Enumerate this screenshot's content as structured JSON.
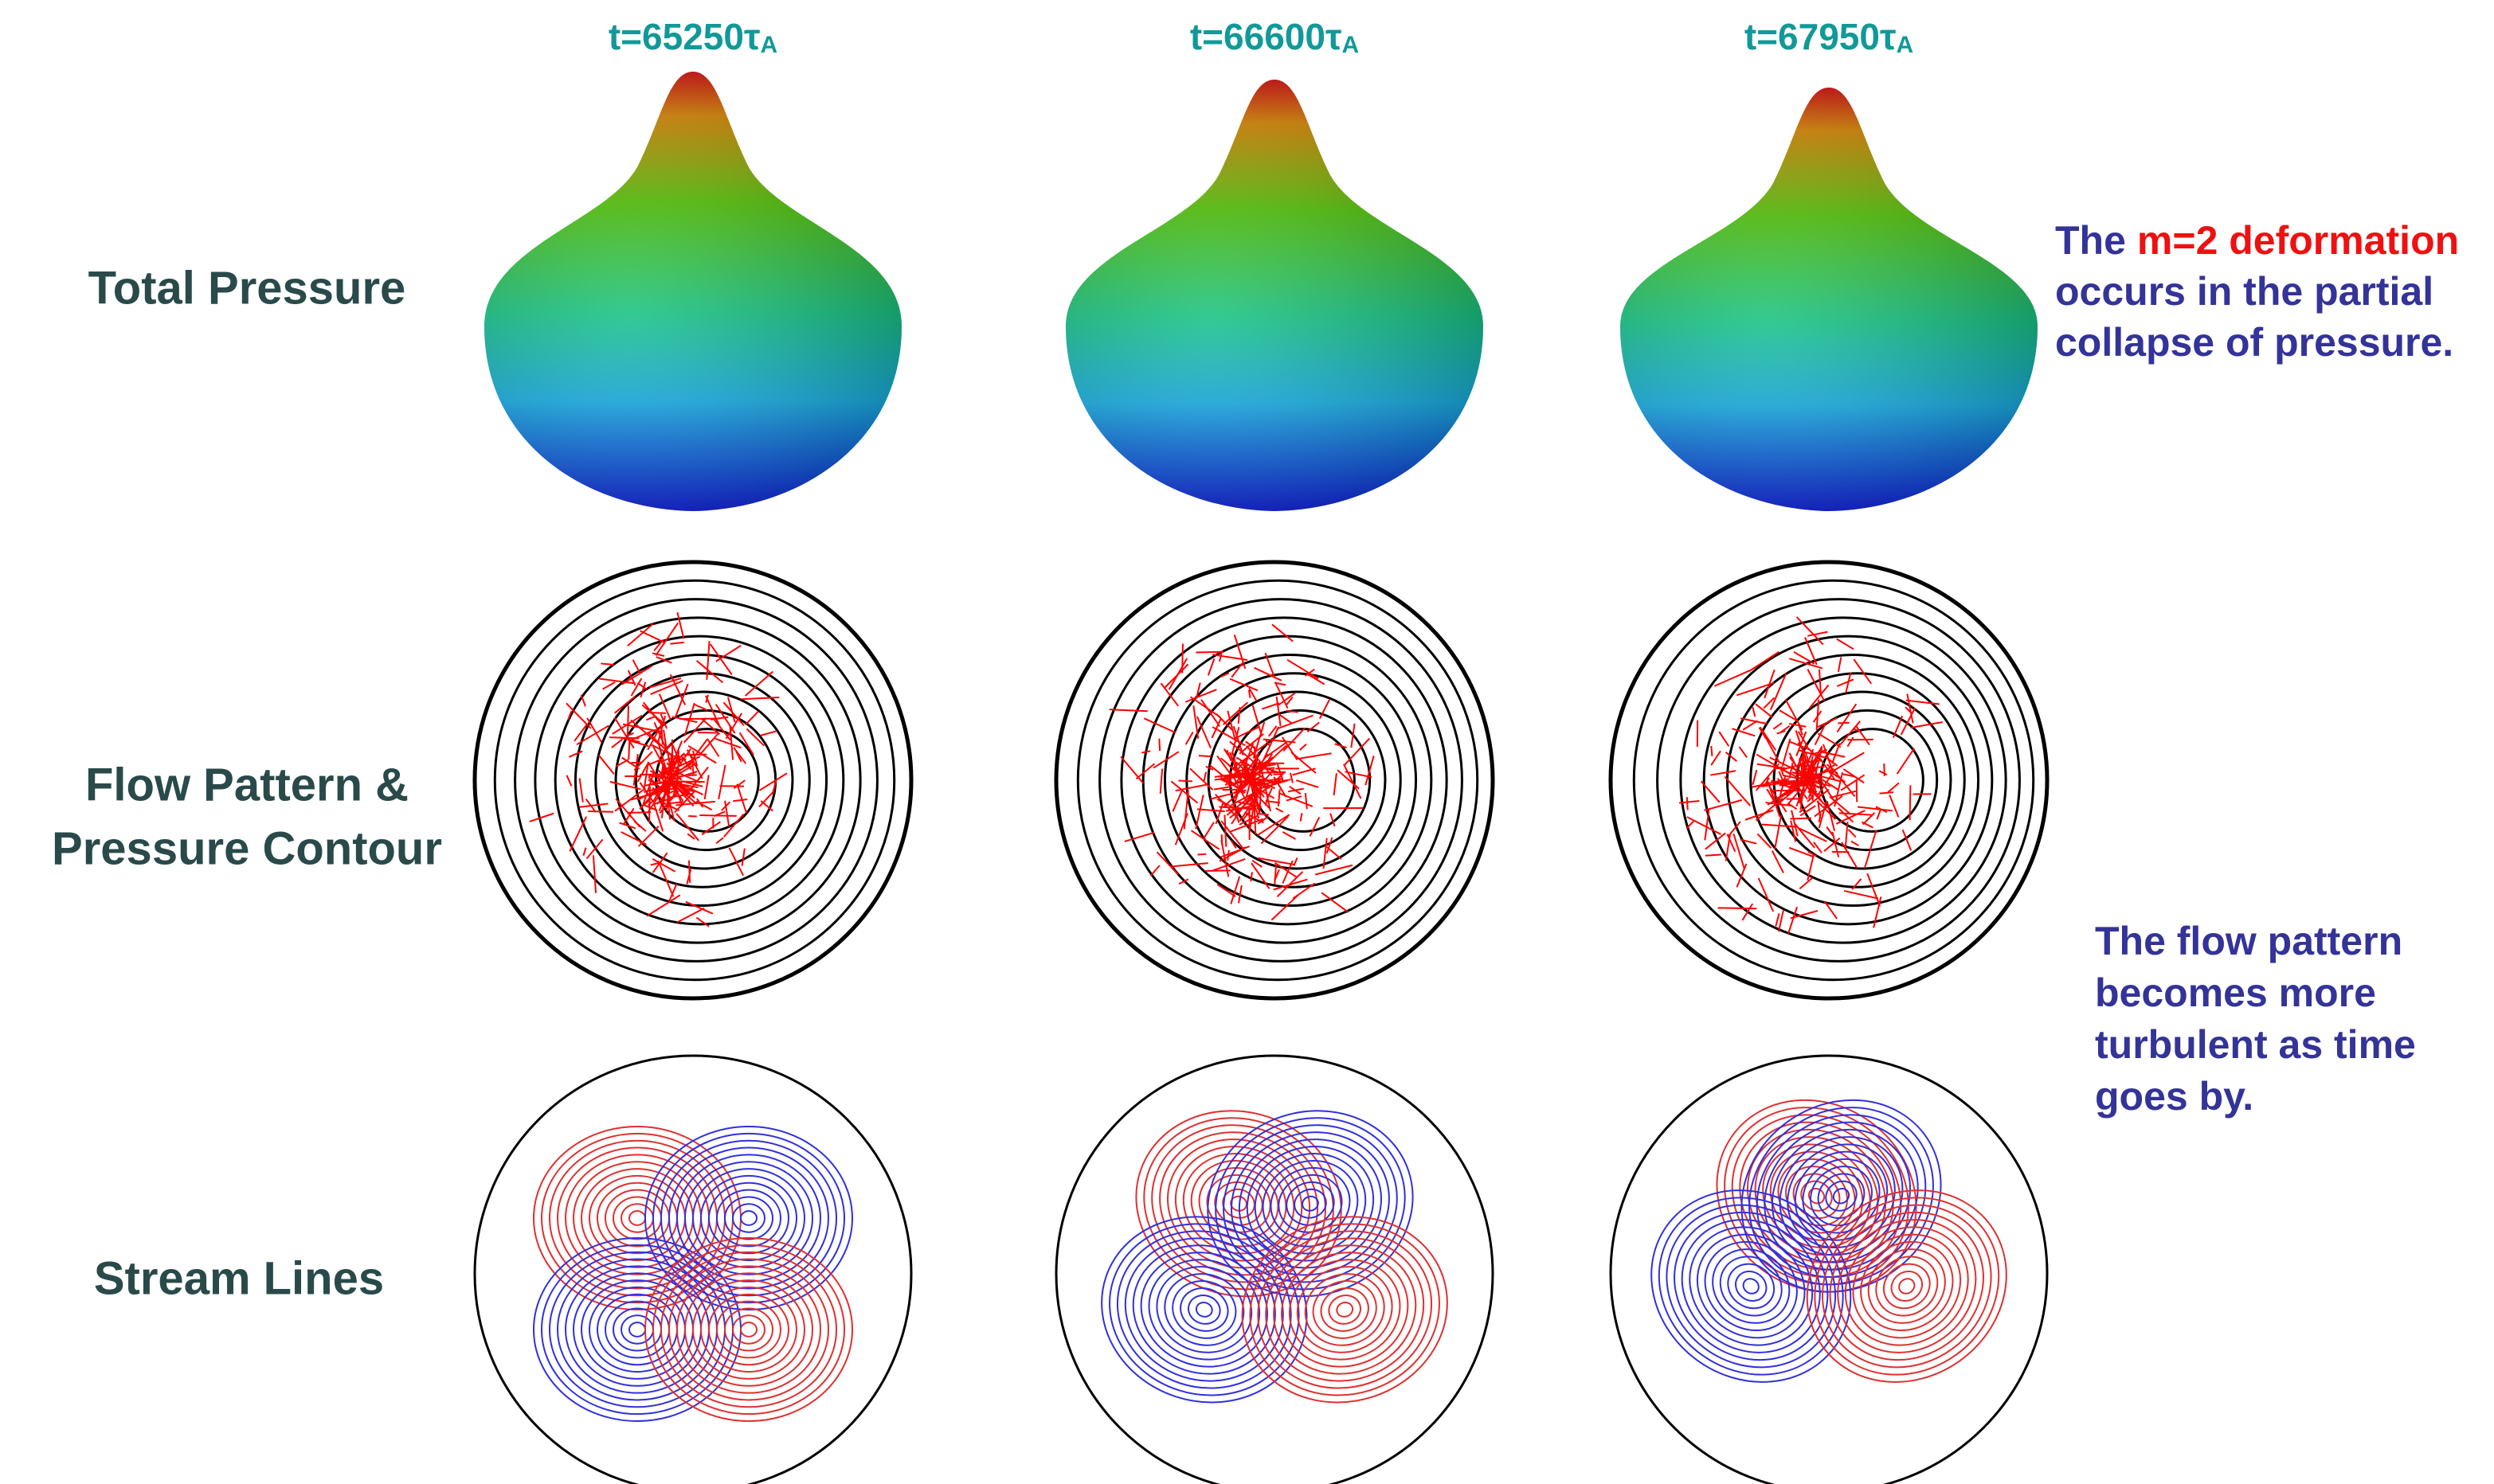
{
  "columns": [
    {
      "time": "t=65250",
      "unit": "τ",
      "unit_sub": "A"
    },
    {
      "time": "t=66600",
      "unit": "τ",
      "unit_sub": "A"
    },
    {
      "time": "t=67950",
      "unit": "τ",
      "unit_sub": "A"
    }
  ],
  "rows": {
    "total_pressure": "Total Pressure",
    "flow_pattern": [
      "Flow Pattern &",
      "Pressure Contour"
    ],
    "stream_lines": "Stream Lines"
  },
  "notes": {
    "deformation": {
      "start": "The",
      "highlight": "m=2 deformation",
      "lines": [
        "occurs in the partial",
        "collapse of pressure."
      ]
    },
    "flow": [
      "The flow pattern",
      "becomes more",
      "turbulent as time",
      "goes by."
    ]
  }
}
